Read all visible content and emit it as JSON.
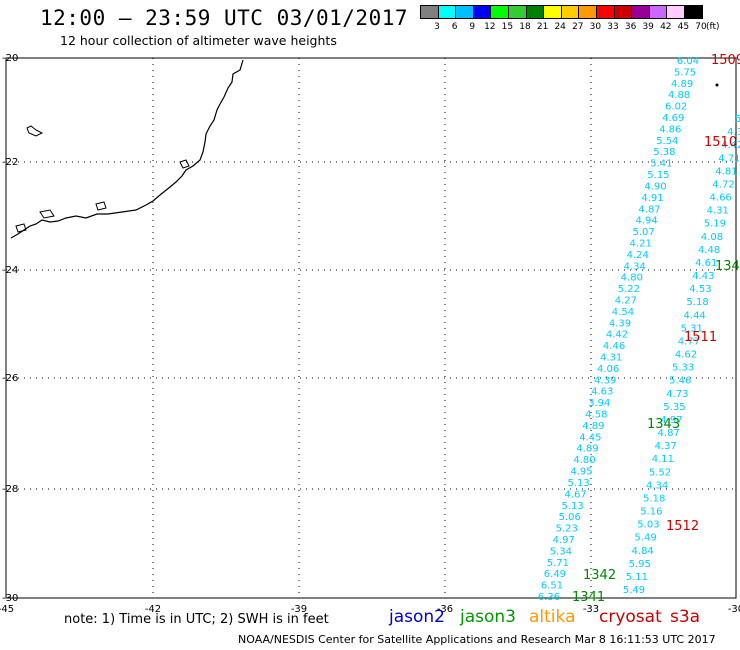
{
  "title": "12:00 – 23:59 UTC 03/01/2017",
  "subtitle": "12 hour collection of altimeter wave heights",
  "legend": {
    "colors": [
      "#808080",
      "#00ffff",
      "#00bfff",
      "#0000ff",
      "#00ff00",
      "#33cc33",
      "#008000",
      "#ffff00",
      "#ffcc00",
      "#ff9900",
      "#ff0000",
      "#cc0000",
      "#990099",
      "#cc66ff",
      "#ffccff",
      "#000000"
    ],
    "labels": [
      "3",
      "6",
      "9",
      "12",
      "15",
      "18",
      "21",
      "24",
      "27",
      "30",
      "33",
      "36",
      "39",
      "42",
      "45",
      "70"
    ],
    "unit": "(ft)"
  },
  "axes": {
    "lat_labels": [
      "-20",
      "-22",
      "-24",
      "-26",
      "-28",
      "-30"
    ],
    "lon_labels": [
      "-45",
      "-42",
      "-39",
      "-36",
      "-33",
      "-30"
    ]
  },
  "track_colors": {
    "heights": "#00ccff",
    "cryosat": "#cc0000",
    "jason3": "#008800"
  },
  "wave_heights_track_a": [
    "6.04",
    "5.75",
    "4.89",
    "4.88",
    "6.02",
    "4.69",
    "4.86",
    "5.54",
    "5.38",
    "5.41",
    "5.15",
    "4.90",
    "4.91",
    "4.87",
    "4.94",
    "5.07",
    "4.21",
    "4.24",
    "4.34",
    "4.80",
    "5.22",
    "4.27",
    "4.54",
    "4.39",
    "4.42",
    "4.46",
    "4.31",
    "4.06",
    "4.39",
    "4.63",
    "3.94",
    "4.58",
    "4.89",
    "4.45",
    "4.89",
    "4.80",
    "4.95",
    "5.13",
    "4.67",
    "5.13",
    "5.06",
    "5.23",
    "4.97",
    "5.34",
    "5.71",
    "6.49",
    "6.51",
    "6.36"
  ],
  "wave_heights_track_b": [
    "5",
    "4.3",
    "4.42",
    "4.71",
    "4.81",
    "4.72",
    "4.66",
    "4.31",
    "5.19",
    "4.08",
    "4.48",
    "4.61",
    "4.43",
    "4.53",
    "5.18",
    "4.44",
    "5.31",
    "4.77",
    "4.62",
    "5.33",
    "5.46",
    "4.73",
    "5.35",
    "4.97",
    "4.87",
    "4.37",
    "4.11",
    "5.52",
    "4.34",
    "5.18",
    "5.16",
    "5.03",
    "5.49",
    "4.84",
    "5.95",
    "5.11",
    "5.49"
  ],
  "pass_labels": {
    "cryosat": [
      "1509",
      "1510",
      "1511",
      "1512"
    ],
    "jason3": [
      "134",
      "1343",
      "1342",
      "1341"
    ]
  },
  "note": "note: 1) Time is in UTC; 2) SWH is in feet",
  "satellites": [
    {
      "name": "jason2",
      "color": "#0000cc"
    },
    {
      "name": "jason3",
      "color": "#009900"
    },
    {
      "name": "altika",
      "color": "#ff9900"
    },
    {
      "name": "cryosat",
      "color": "#cc0000"
    },
    {
      "name": "s3a",
      "color": "#cc0000"
    }
  ],
  "credit": "NOAA/NESDIS Center for Satellite Applications and Research   Mar  8 16:11:53 UTC 2017"
}
